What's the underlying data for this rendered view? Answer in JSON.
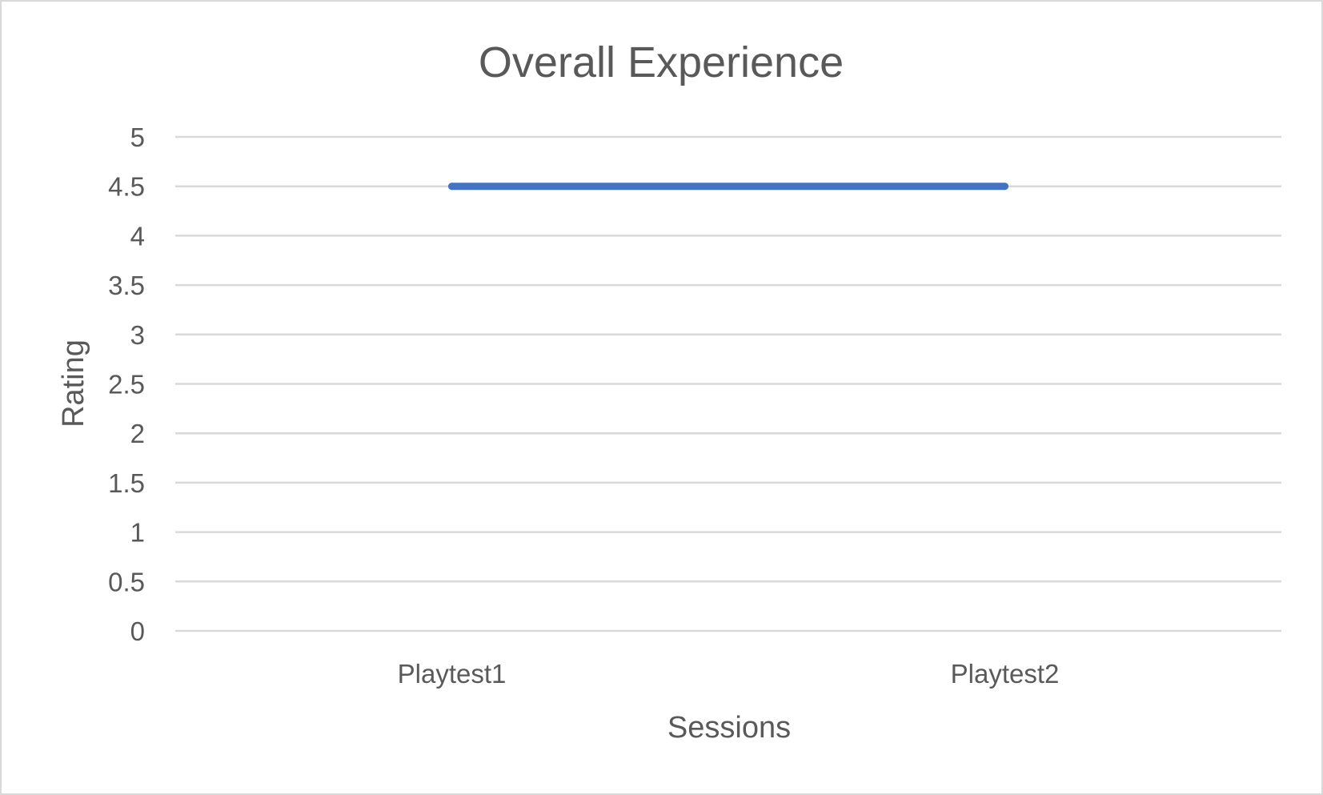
{
  "chart_data": {
    "type": "line",
    "title": "Overall Experience",
    "xlabel": "Sessions",
    "ylabel": "Rating",
    "categories": [
      "Playtest1",
      "Playtest2"
    ],
    "series": [
      {
        "values": [
          4.5,
          4.5
        ],
        "color": "#4472c4"
      }
    ],
    "ylim": [
      0,
      5
    ],
    "y_ticks": [
      "0",
      "0.5",
      "1",
      "1.5",
      "2",
      "2.5",
      "3",
      "3.5",
      "4",
      "4.5",
      "5"
    ],
    "grid": true,
    "legend": "none"
  }
}
